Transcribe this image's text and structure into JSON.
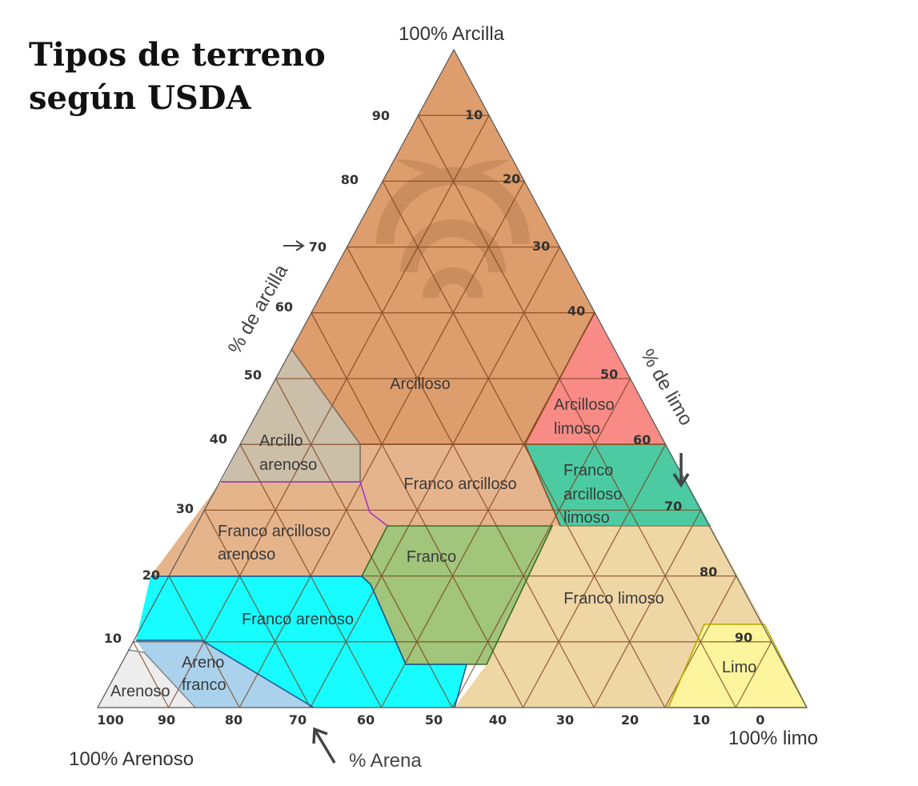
{
  "title_line1": "Tipos de terreno",
  "title_line2": "según USDA",
  "corners": {
    "top": "100% Arcilla",
    "left": "100% Arenoso",
    "right": "100% limo"
  },
  "axes": {
    "clay": "% de arcilla",
    "silt": "% de limo",
    "sand": "% Arena"
  },
  "ticks": {
    "clay_left": [
      "90",
      "80",
      "70",
      "60",
      "50",
      "40",
      "30",
      "20",
      "10"
    ],
    "silt_right": [
      "10",
      "20",
      "30",
      "40",
      "50",
      "60",
      "70",
      "80",
      "90"
    ],
    "sand_bottom": [
      "100",
      "90",
      "80",
      "70",
      "60",
      "50",
      "40",
      "30",
      "20",
      "10",
      "0"
    ]
  },
  "regions": {
    "arcilloso": "Arcilloso",
    "arcilloso_limoso_1": "Arcilloso",
    "arcilloso_limoso_2": "limoso",
    "arcillo_arenoso_1": "Arcillo",
    "arcillo_arenoso_2": "arenoso",
    "franco_arcilloso": "Franco arcilloso",
    "franco_arcilloso_limoso_1": "Franco",
    "franco_arcilloso_limoso_2": "arcilloso",
    "franco_arcilloso_limoso_3": "limoso",
    "franco_arcilloso_arenoso_1": "Franco arcilloso",
    "franco_arcilloso_arenoso_2": "arenoso",
    "franco": "Franco",
    "franco_limoso": "Franco limoso",
    "franco_arenoso": "Franco arenoso",
    "areno_franco_1": "Areno",
    "areno_franco_2": "franco",
    "arenoso": "Arenoso",
    "limo": "Limo"
  },
  "colors": {
    "arcilloso": "#de9d6c",
    "arcilloso_limoso": "#f88b86",
    "arcillo_arenoso": "#cbbfa9",
    "franco_arcilloso": "#e6b48c",
    "franco_arcilloso_limoso": "#4ccba3",
    "franco_arcilloso_arenoso": "#e5b48b",
    "franco": "#a0c57b",
    "franco_limoso": "#efd6a5",
    "franco_arenoso": "#17fcfe",
    "areno_franco": "#abd2ec",
    "arenoso": "#ededed",
    "limo": "#fcf59d"
  }
}
